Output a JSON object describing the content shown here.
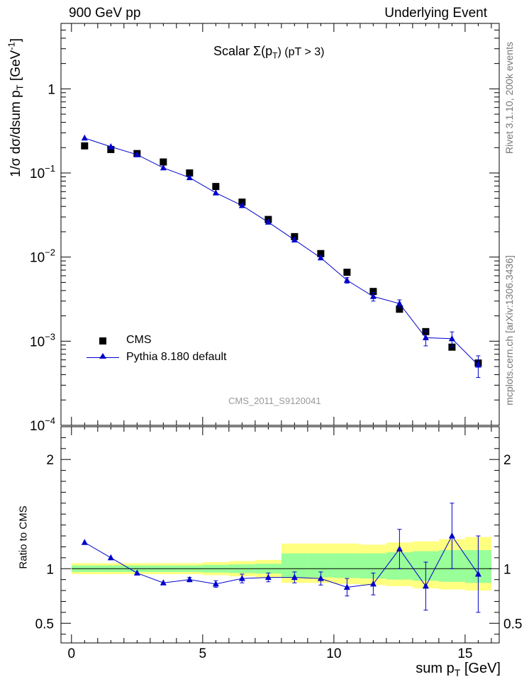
{
  "header": {
    "left": "900 GeV pp",
    "right": "Underlying Event"
  },
  "side_labels": {
    "rivet": "Rivet 3.1.10,  200k events",
    "mcplots": "mcplots.cern.ch [arXiv:1306.3436]"
  },
  "chart_data": [
    {
      "type": "scatter",
      "panel": "main",
      "title": "Scalar Σ(p_T) (pT > 3)",
      "title_parts": {
        "prefix": "Scalar ",
        "sigma": "Σ(p",
        "sub": "T",
        "suffix": ") (pT >  3)"
      },
      "ylabel": "1/σ dσ/dsum p_T [GeV^-1]",
      "ylabel_parts": {
        "main": "1/σ dσ/dsum p",
        "sub": "T",
        "unit": " [GeV",
        "sup": "-1",
        "close": "]"
      },
      "yscale": "log",
      "ylim": [
        0.0001,
        6
      ],
      "xlim": [
        -0.4,
        16.3
      ],
      "ytick_labels": [
        {
          "value": 1,
          "base": "1",
          "exp": ""
        },
        {
          "value": 0.1,
          "base": "10",
          "exp": "−1"
        },
        {
          "value": 0.01,
          "base": "10",
          "exp": "−2"
        },
        {
          "value": 0.001,
          "base": "10",
          "exp": "−3"
        },
        {
          "value": 0.0001,
          "base": "10",
          "exp": "−4"
        }
      ],
      "watermark": "CMS_2011_S9120041",
      "legend_position": "bottom-left",
      "series": [
        {
          "name": "CMS",
          "marker": "square",
          "color": "#000000",
          "x": [
            0.5,
            1.5,
            2.5,
            3.5,
            4.5,
            5.5,
            6.5,
            7.5,
            8.5,
            9.5,
            10.5,
            11.5,
            12.5,
            13.5,
            14.5,
            15.5
          ],
          "y": [
            0.21,
            0.19,
            0.17,
            0.135,
            0.1,
            0.069,
            0.045,
            0.028,
            0.0175,
            0.011,
            0.0066,
            0.0039,
            0.0024,
            0.0013,
            0.00085,
            0.00055
          ]
        },
        {
          "name": "Pythia 8.180 default",
          "marker": "triangle",
          "color": "#0000cc",
          "x": [
            0.5,
            1.5,
            2.5,
            3.5,
            4.5,
            5.5,
            6.5,
            7.5,
            8.5,
            9.5,
            10.5,
            11.5,
            12.5,
            13.5,
            14.5,
            15.5
          ],
          "y": [
            0.26,
            0.205,
            0.165,
            0.115,
            0.088,
            0.058,
            0.041,
            0.026,
            0.016,
            0.0098,
            0.0053,
            0.0034,
            0.0028,
            0.0011,
            0.00107,
            0.00052
          ],
          "yerr": [
            0,
            0,
            0,
            0,
            0,
            0,
            0,
            0,
            0,
            0,
            0.0004,
            0.0004,
            0.0003,
            0.00022,
            0.00022,
            0.00015
          ]
        }
      ]
    },
    {
      "type": "line",
      "panel": "ratio",
      "ylabel": "Ratio to CMS",
      "xlabel": "sum p_T [GeV]",
      "xlabel_parts": {
        "main": "sum p",
        "sub": "T",
        "unit": " [GeV]"
      },
      "xlim": [
        -0.4,
        16.3
      ],
      "ylim": [
        0.32,
        2.3
      ],
      "xticks": [
        0,
        5,
        10,
        15
      ],
      "yticks": [
        0.5,
        1,
        2
      ],
      "ytick_labels": [
        "0.5",
        "1",
        "2"
      ],
      "bands": {
        "x_edges": [
          0,
          1,
          2,
          3,
          4,
          5,
          6,
          7,
          8,
          9,
          10,
          11,
          12,
          13,
          14,
          15,
          16
        ],
        "yellow_lo": [
          0.95,
          0.95,
          0.95,
          0.95,
          0.95,
          0.94,
          0.93,
          0.92,
          0.87,
          0.87,
          0.86,
          0.85,
          0.84,
          0.82,
          0.81,
          0.8
        ],
        "yellow_hi": [
          1.05,
          1.05,
          1.05,
          1.05,
          1.05,
          1.06,
          1.07,
          1.08,
          1.23,
          1.23,
          1.23,
          1.22,
          1.24,
          1.25,
          1.27,
          1.29
        ],
        "green_lo": [
          0.97,
          0.97,
          0.97,
          0.97,
          0.97,
          0.965,
          0.96,
          0.955,
          0.92,
          0.92,
          0.915,
          0.91,
          0.9,
          0.89,
          0.88,
          0.87
        ],
        "green_hi": [
          1.03,
          1.03,
          1.03,
          1.03,
          1.03,
          1.035,
          1.04,
          1.045,
          1.14,
          1.14,
          1.14,
          1.14,
          1.15,
          1.16,
          1.17,
          1.17
        ]
      },
      "series": [
        {
          "name": "Pythia 8.180 default",
          "color": "#0000cc",
          "x": [
            0.5,
            1.5,
            2.5,
            3.5,
            4.5,
            5.5,
            6.5,
            7.5,
            8.5,
            9.5,
            10.5,
            11.5,
            12.5,
            13.5,
            14.5,
            15.5
          ],
          "y": [
            1.24,
            1.1,
            0.96,
            0.87,
            0.9,
            0.86,
            0.91,
            0.92,
            0.92,
            0.91,
            0.83,
            0.86,
            1.18,
            0.84,
            1.3,
            0.95
          ],
          "yerr": [
            0,
            0,
            0,
            0,
            0.02,
            0.03,
            0.04,
            0.04,
            0.05,
            0.06,
            0.08,
            0.1,
            0.18,
            0.22,
            0.3,
            0.35
          ]
        }
      ]
    }
  ]
}
